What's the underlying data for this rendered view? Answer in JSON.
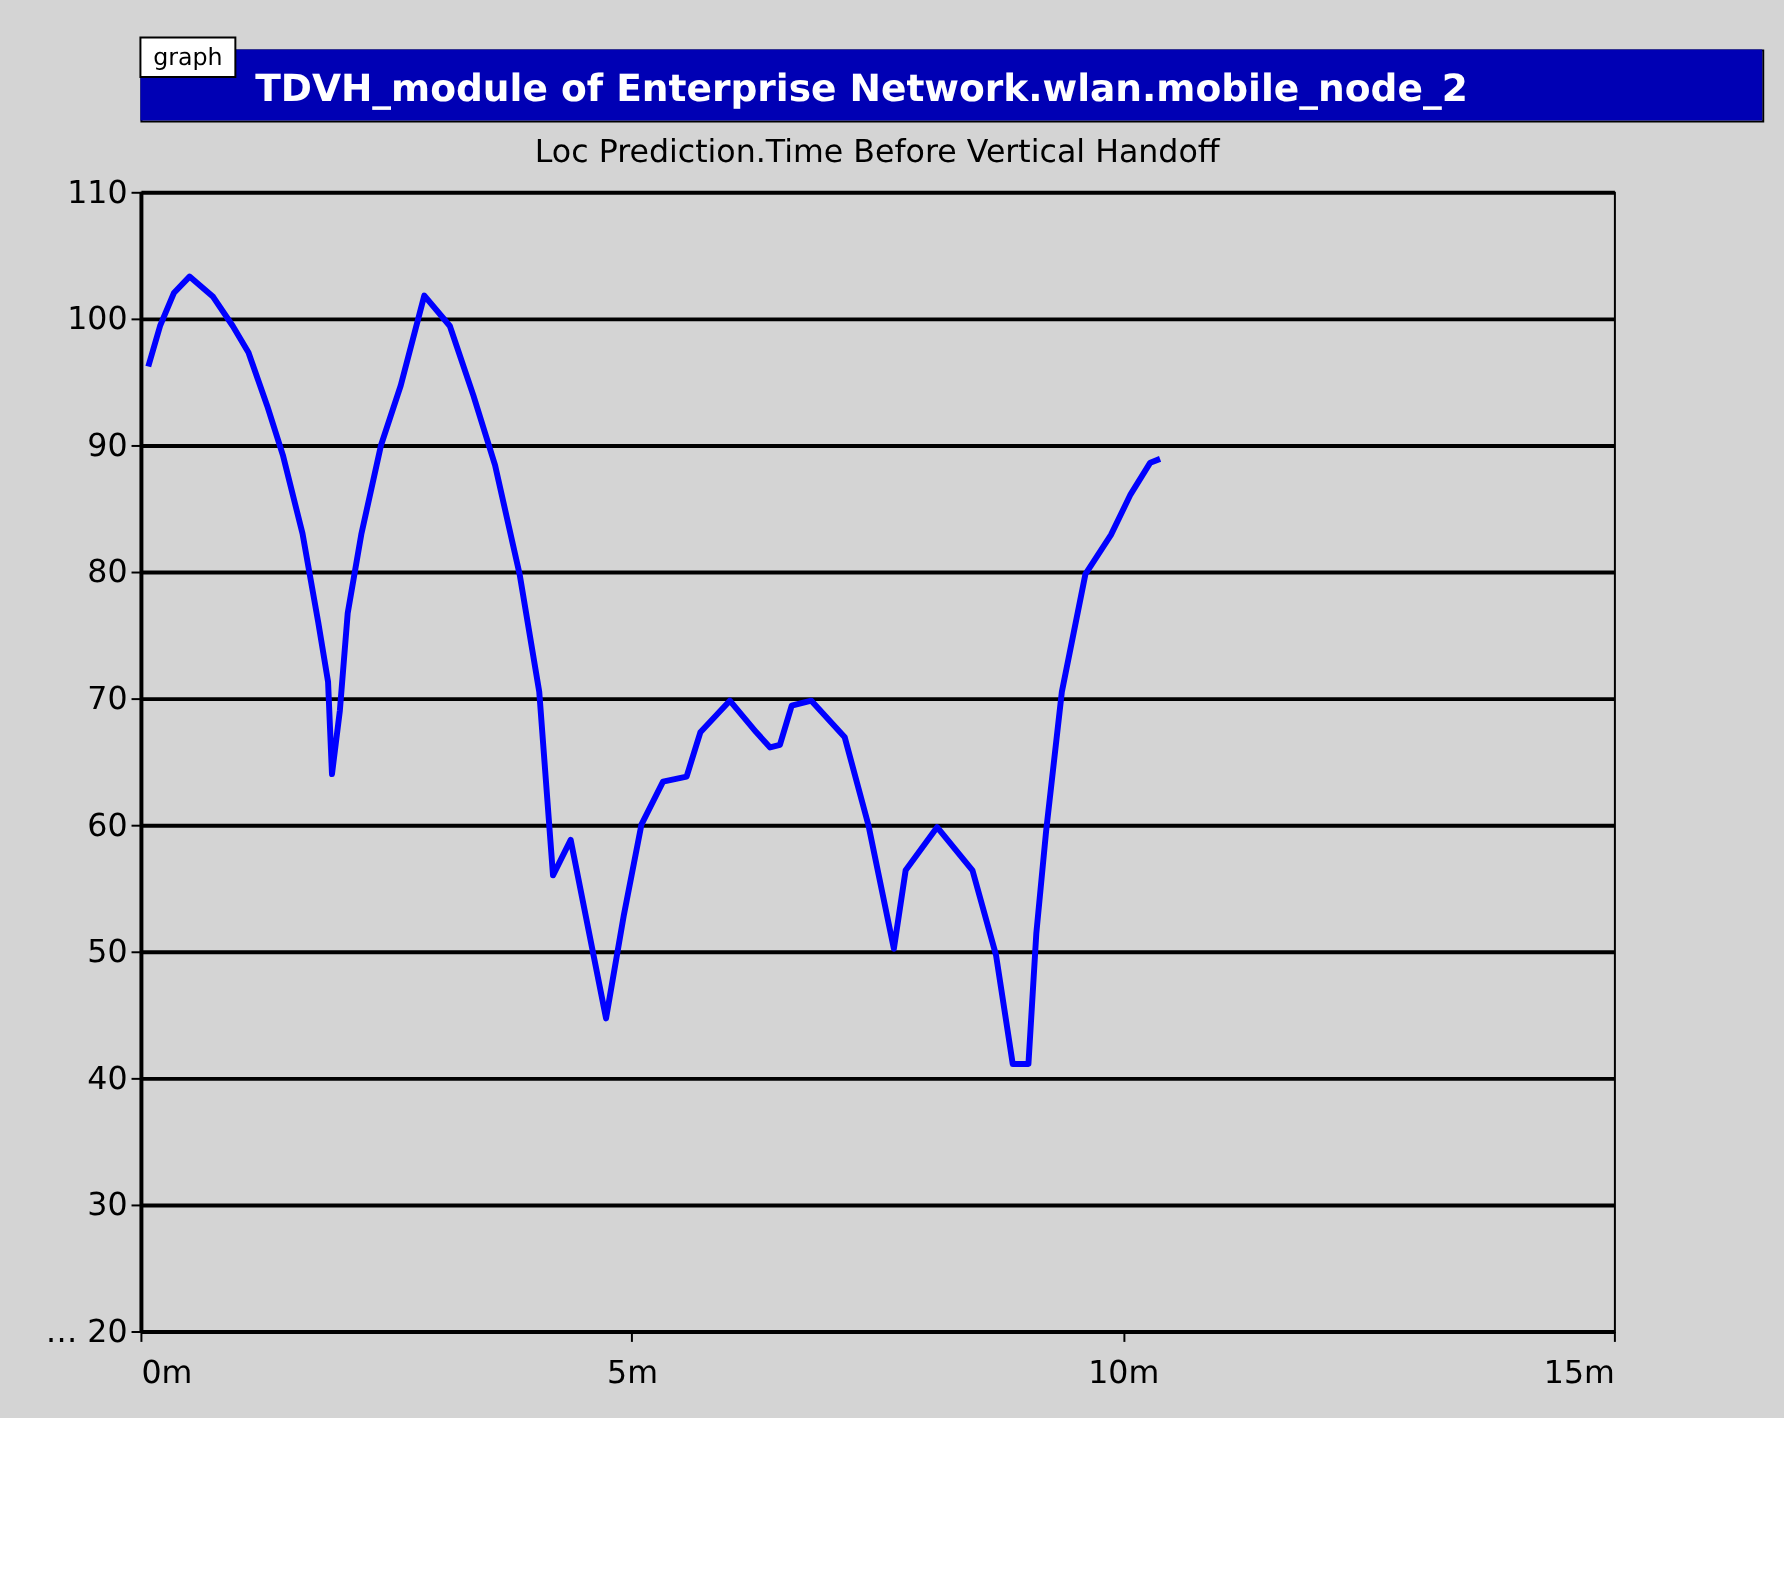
{
  "chart_data": {
    "type": "line",
    "title": "TDVH_module of Enterprise Network.wlan.mobile_node_2",
    "subtitle": "Loc Prediction.Time Before Vertical Handoff",
    "annotations": [
      "graph"
    ],
    "x": [
      0.08,
      0.2,
      0.34,
      0.5,
      0.74,
      0.94,
      1.1,
      1.29,
      1.45,
      1.65,
      1.81,
      1.91,
      1.95,
      2.03,
      2.11,
      2.25,
      2.45,
      2.65,
      2.89,
      3.15,
      3.39,
      3.61,
      3.86,
      4.06,
      4.2,
      4.38,
      4.74,
      4.92,
      5.1,
      5.32,
      5.56,
      5.7,
      6.0,
      6.27,
      6.41,
      6.51,
      6.63,
      6.83,
      7.17,
      7.41,
      7.67,
      7.79,
      8.11,
      8.47,
      8.71,
      8.88,
      9.04,
      9.12,
      9.22,
      9.38,
      9.62,
      9.88,
      10.08,
      10.28,
      10.38
    ],
    "series": [
      {
        "color": "#0000ff",
        "values": [
          96.2,
          99.4,
          102,
          103.3,
          101.7,
          99.4,
          97.3,
          93.1,
          89.2,
          83,
          76,
          71.3,
          64,
          69,
          76.7,
          83,
          90,
          94.7,
          101.8,
          99.4,
          93.9,
          88.4,
          79.8,
          70.5,
          56,
          58.8,
          44.7,
          52.8,
          60,
          63.4,
          63.8,
          67.3,
          69.8,
          67.3,
          66.1,
          66.3,
          69.4,
          69.8,
          66.9,
          60,
          50.2,
          56.4,
          59.8,
          56.4,
          49.7,
          41.1,
          41.1,
          51.4,
          59.5,
          70.5,
          79.8,
          82.9,
          86.1,
          88.6,
          88.9
        ]
      }
    ],
    "xlim": [
      0,
      15
    ],
    "xticks": [
      {
        "value": 0,
        "label": "0m"
      },
      {
        "value": 5,
        "label": "5m"
      },
      {
        "value": 10,
        "label": "10m"
      },
      {
        "value": 15,
        "label": "15m"
      }
    ],
    "ylim": [
      20,
      110
    ],
    "yticks": [
      {
        "value": 20,
        "label": "… 20"
      },
      30,
      40,
      50,
      60,
      70,
      80,
      90,
      100,
      110
    ],
    "grid": "y",
    "marker": "none",
    "line_style": "solid"
  }
}
